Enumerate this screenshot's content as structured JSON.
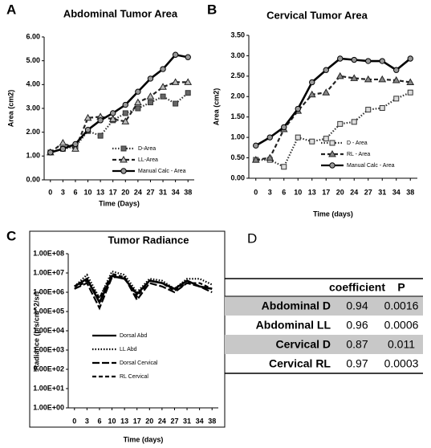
{
  "chart_data": [
    {
      "type": "line",
      "panel_label": "A",
      "title": "Abdominal  Tumor Area",
      "x_label": "Time (Days)",
      "y_label": "Area (cm2)",
      "categories": [
        "0",
        "3",
        "6",
        "10",
        "13",
        "17",
        "20",
        "24",
        "27",
        "31",
        "34",
        "38"
      ],
      "ylim": [
        0,
        6
      ],
      "yticks": [
        {
          "value": 0,
          "label": "0.00"
        },
        {
          "value": 1,
          "label": "1.00"
        },
        {
          "value": 2,
          "label": "2.00"
        },
        {
          "value": 3,
          "label": "3.00"
        },
        {
          "value": 4,
          "label": "4.00"
        },
        {
          "value": 5,
          "label": "5.00"
        },
        {
          "value": 6,
          "label": "6.00"
        }
      ],
      "series": [
        {
          "name": "D-Area",
          "color": "#333333",
          "dash": "dotted",
          "marker": "square",
          "marker_fill": "#666666",
          "values": [
            1.15,
            1.3,
            1.4,
            2.05,
            1.85,
            2.5,
            2.8,
            3.0,
            3.25,
            3.5,
            3.2,
            3.65
          ]
        },
        {
          "name": "LL-Area",
          "color": "#222222",
          "dash": "dashed",
          "marker": "triangle",
          "marker_fill": "#bbbbbb",
          "values": [
            1.15,
            1.55,
            1.3,
            2.6,
            2.65,
            2.55,
            2.45,
            3.25,
            3.5,
            3.9,
            4.1,
            4.1
          ]
        },
        {
          "name": "Manual Calc - Area",
          "color": "#000000",
          "dash": "solid",
          "marker": "circle",
          "marker_fill": "#999999",
          "values": [
            1.15,
            1.3,
            1.5,
            2.1,
            2.5,
            2.8,
            3.15,
            3.7,
            4.25,
            4.65,
            5.25,
            5.15
          ]
        }
      ]
    },
    {
      "type": "line",
      "panel_label": "B",
      "title": "Cervical Tumor Area",
      "x_label": "Time (days)",
      "y_label": "Area (cm2)",
      "categories": [
        "0",
        "3",
        "6",
        "10",
        "13",
        "17",
        "20",
        "24",
        "27",
        "31",
        "34",
        "38"
      ],
      "ylim": [
        0,
        3.5
      ],
      "yticks": [
        {
          "value": 0,
          "label": "0.00"
        },
        {
          "value": 0.5,
          "label": "0.50"
        },
        {
          "value": 1,
          "label": "1.00"
        },
        {
          "value": 1.5,
          "label": "1.50"
        },
        {
          "value": 2,
          "label": "2.00"
        },
        {
          "value": 2.5,
          "label": "2.50"
        },
        {
          "value": 3,
          "label": "3.00"
        },
        {
          "value": 3.5,
          "label": "3.50"
        }
      ],
      "series": [
        {
          "name": "D - Area",
          "color": "#333333",
          "dash": "dotted",
          "marker": "square",
          "marker_fill": "#dddddd",
          "values": [
            0.45,
            0.45,
            0.28,
            1.0,
            0.9,
            0.97,
            1.33,
            1.38,
            1.68,
            1.72,
            1.95,
            2.1
          ]
        },
        {
          "name": "RL - Area",
          "color": "#222222",
          "dash": "dashed",
          "marker": "triangle",
          "marker_fill": "#888888",
          "values": [
            0.45,
            0.5,
            1.2,
            1.65,
            2.05,
            2.1,
            2.5,
            2.45,
            2.42,
            2.42,
            2.4,
            2.35
          ]
        },
        {
          "name": "Manual Calc - Area",
          "color": "#000000",
          "dash": "solid",
          "marker": "circle",
          "marker_fill": "#999999",
          "values": [
            0.8,
            1.0,
            1.25,
            1.7,
            2.35,
            2.65,
            2.93,
            2.9,
            2.87,
            2.87,
            2.65,
            2.93
          ]
        }
      ]
    },
    {
      "type": "line",
      "panel_label": "C",
      "title": "Tumor Radiance",
      "x_label": "Time (days)",
      "y_label": "Radiance  (p/s/cm^2/sr)",
      "log_scale": true,
      "categories": [
        "0",
        "3",
        "6",
        "10",
        "13",
        "17",
        "20",
        "24",
        "27",
        "31",
        "34",
        "38"
      ],
      "ylim": [
        1,
        100000000
      ],
      "yticks": [
        {
          "value": 1,
          "label": "1.00E+00"
        },
        {
          "value": 10,
          "label": "1.00E+01"
        },
        {
          "value": 100,
          "label": "1.00E+02"
        },
        {
          "value": 1000,
          "label": "1.00E+03"
        },
        {
          "value": 10000,
          "label": "1.00E+04"
        },
        {
          "value": 100000,
          "label": "1.00E+05"
        },
        {
          "value": 1000000,
          "label": "1.00E+06"
        },
        {
          "value": 10000000,
          "label": "1.00E+07"
        },
        {
          "value": 100000000,
          "label": "1.00E+08"
        }
      ],
      "series": [
        {
          "name": "Dorsal Abd",
          "color": "#000000",
          "dash": "solid",
          "values": [
            2000000,
            5000000,
            300000,
            7000000,
            5000000,
            800000,
            4000000,
            3000000,
            1500000,
            4000000,
            2000000,
            1500000
          ]
        },
        {
          "name": "LL Abd",
          "color": "#000000",
          "dash": "dotted",
          "values": [
            2000000,
            8000000,
            500000,
            12000000,
            8000000,
            1000000,
            5000000,
            4000000,
            1500000,
            5000000,
            5000000,
            2500000
          ]
        },
        {
          "name": "Dorsal Cervical",
          "color": "#000000",
          "dash": "longdash",
          "values": [
            1500000,
            3000000,
            150000,
            6000000,
            6000000,
            400000,
            3000000,
            2000000,
            1000000,
            3000000,
            2000000,
            1000000
          ]
        },
        {
          "name": "RL Cervical",
          "color": "#000000",
          "dash": "dashed",
          "values": [
            1500000,
            4000000,
            500000,
            9000000,
            6000000,
            600000,
            4000000,
            3000000,
            1200000,
            3000000,
            3000000,
            1500000
          ]
        }
      ]
    }
  ],
  "table": {
    "panel_label": "D",
    "columns": [
      "coefficient",
      "P"
    ],
    "rows": [
      [
        "Abdominal D",
        0.94,
        0.0016
      ],
      [
        "Abdominal LL",
        0.96,
        0.0006
      ],
      [
        "Cervical D",
        0.87,
        0.011
      ],
      [
        "Cervical RL",
        0.97,
        0.0003
      ]
    ]
  }
}
